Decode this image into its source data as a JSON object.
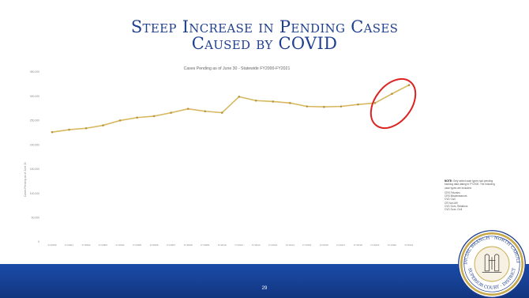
{
  "slide": {
    "title_line1": "Steep Increase in Pending Cases",
    "title_line2": "Caused by COVID",
    "page_number": "29",
    "footer_color": "#1a4ba8",
    "title_color": "#1f3f8f"
  },
  "note": {
    "label": "NOTE:",
    "text": "Only select case types had pending backlog data dating to FY2000. The following case types are included:",
    "items": [
      "CRS Felonies",
      "CRS Misdemeanors",
      "CVD Civil",
      "CR Non-MV",
      "CVD Dom. Relations",
      "CVD Dom. Civil"
    ]
  },
  "seal": {
    "text_top": "JUDICIAL BRANCH · NORTH CAROLINA",
    "text_bottom": "SUPERIOR COURT · DISTRICT"
  },
  "chart_data": {
    "type": "line",
    "title": "Cases Pending as of June 30 - Statewide FY2000-FY2021",
    "xlabel": "",
    "ylabel": "Cases Pending as of June 30",
    "categories": [
      "FY2000",
      "FY2001",
      "FY2002",
      "FY2003",
      "FY2004",
      "FY2005",
      "FY2006",
      "FY2007",
      "FY2008",
      "FY2009",
      "FY2010",
      "FY2011",
      "FY2012",
      "FY2013",
      "FY2014",
      "FY2015",
      "FY2016",
      "FY2017",
      "FY2018",
      "FY2019",
      "FY2020",
      "FY2021"
    ],
    "series": [
      {
        "values": [
          226000,
          231000,
          234000,
          240000,
          250000,
          256000,
          259000,
          266000,
          274000,
          269000,
          266000,
          299000,
          291000,
          289000,
          286000,
          279000,
          278000,
          279000,
          283000,
          286000,
          305000,
          323000
        ]
      }
    ],
    "ylim": [
      0,
      350000
    ],
    "yticks": [
      "0",
      "50,000",
      "100,000",
      "150,000",
      "200,000",
      "250,000",
      "300,000",
      "350,000"
    ],
    "line_color": "#d8b860",
    "highlight_color": "#dd2222",
    "grid": false
  }
}
